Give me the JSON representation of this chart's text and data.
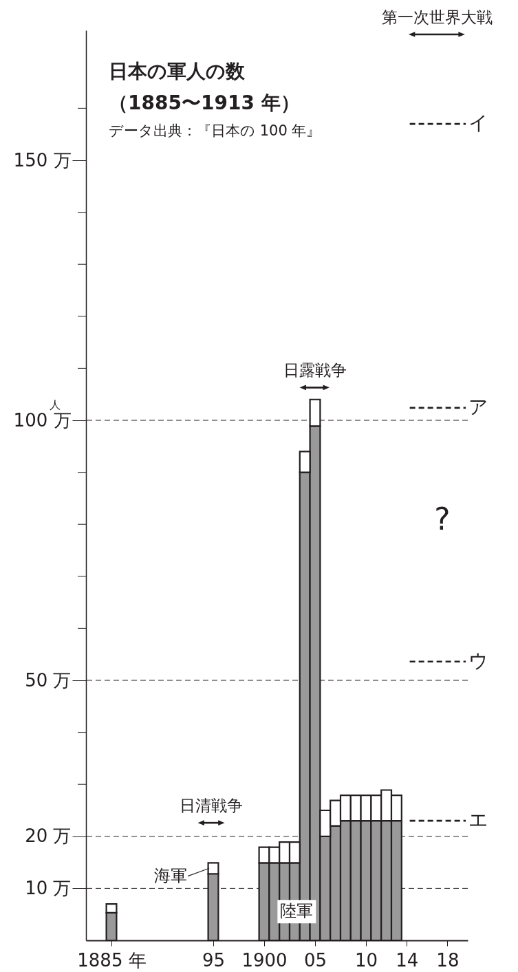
{
  "chart_data": {
    "type": "bar",
    "title": "日本の軍人の数",
    "subtitle": "（1885〜1913 年）",
    "ylabel": "人",
    "x": [
      1885,
      1895,
      1900,
      1901,
      1902,
      1903,
      1904,
      1905,
      1906,
      1907,
      1908,
      1909,
      1910,
      1911,
      1912,
      1913
    ],
    "stacked": true,
    "series": [
      {
        "name": "陸軍",
        "color": "#9a9a9a",
        "values": [
          5.3,
          12.8,
          14.9,
          14.9,
          14.9,
          14.9,
          90.0,
          98.9,
          20.0,
          22.0,
          23.0,
          23.0,
          23.0,
          23.0,
          23.0,
          23.0
        ]
      },
      {
        "name": "海軍",
        "color": "#ffffff",
        "values": [
          1.7,
          2.1,
          3.0,
          3.0,
          4.0,
          4.0,
          4.0,
          5.1,
          5.0,
          4.9,
          4.9,
          4.9,
          4.9,
          4.9,
          5.9,
          4.9
        ]
      },
      {
        "name": "ア",
        "type": "line",
        "color": "#231f20",
        "line_style": "dashed",
        "x": [
          1914.3,
          1919.8
        ],
        "values": [
          102.4,
          102.4
        ]
      },
      {
        "name": "イ",
        "type": "line",
        "color": "#231f20",
        "line_style": "dashed",
        "x": [
          1914.3,
          1919.8
        ],
        "values": [
          157.0,
          157.0
        ]
      },
      {
        "name": "ウ",
        "type": "line",
        "color": "#231f20",
        "line_style": "dashed",
        "x": [
          1914.3,
          1919.8
        ],
        "values": [
          53.6,
          53.6
        ]
      },
      {
        "name": "エ",
        "type": "line",
        "color": "#231f20",
        "line_style": "dashed",
        "x": [
          1914.3,
          1919.8
        ],
        "values": [
          23.0,
          23.0
        ]
      },
      {
        "type": "line",
        "color": "#231f20",
        "line_style": "solid",
        "marker": "triangle",
        "x": [
          1893.8,
          1895.8
        ],
        "values": [
          22.6,
          22.6
        ]
      },
      {
        "type": "line",
        "color": "#231f20",
        "line_style": "solid",
        "marker": "triangle",
        "x": [
          1903.8,
          1906.1
        ],
        "values": [
          106.3,
          106.3
        ]
      },
      {
        "type": "line",
        "color": "#231f20",
        "line_style": "solid",
        "marker": "triangle",
        "x": [
          1914.5,
          1919.4
        ],
        "values": [
          174.2,
          174.2
        ]
      }
    ],
    "xlim": [
      1882.5,
      1920
    ],
    "xticks": [
      {
        "value": 1885,
        "label": "1885 年"
      },
      {
        "value": 1895,
        "label": "95"
      },
      1900,
      {
        "value": 1905,
        "label": "05"
      },
      {
        "value": 1910,
        "label": "10"
      },
      {
        "value": 1914,
        "label": "14"
      },
      {
        "value": 1918,
        "label": "18"
      }
    ],
    "ylim": [
      0,
      175
    ],
    "yticks": [
      {
        "value": 10,
        "label": "10 万"
      },
      {
        "value": 20,
        "label": "20 万"
      },
      {
        "value": 30,
        "label": null
      },
      {
        "value": 40,
        "label": null
      },
      {
        "value": 50,
        "label": "50 万"
      },
      {
        "value": 60,
        "label": null
      },
      {
        "value": 70,
        "label": null
      },
      {
        "value": 80,
        "label": null
      },
      {
        "value": 90,
        "label": null
      },
      {
        "value": 100,
        "label": "100 万"
      },
      {
        "value": 110,
        "label": null
      },
      {
        "value": 120,
        "label": null
      },
      {
        "value": 130,
        "label": null
      },
      {
        "value": 140,
        "label": null
      },
      {
        "value": 150,
        "label": "150 万"
      },
      {
        "value": 160,
        "label": null
      }
    ],
    "ref_lines": [
      {
        "axis": "y",
        "value": 10,
        "line_style": "dashed"
      },
      {
        "axis": "y",
        "value": 20,
        "line_style": "dashed"
      },
      {
        "axis": "y",
        "value": 50,
        "line_style": "dashed"
      },
      {
        "axis": "y",
        "value": 100,
        "line_style": "dashed"
      }
    ],
    "annotations": [
      "データ出典：『日本の 100 年』",
      "?",
      {
        "text": "日清戦争",
        "x": 1894.8,
        "y": 22.6
      },
      {
        "text": "日露戦争",
        "x": 1905.0,
        "y": 106.3
      },
      {
        "text": "第一次世界大戦",
        "x": 1917.0,
        "y": 174.2
      }
    ],
    "grid": false
  }
}
